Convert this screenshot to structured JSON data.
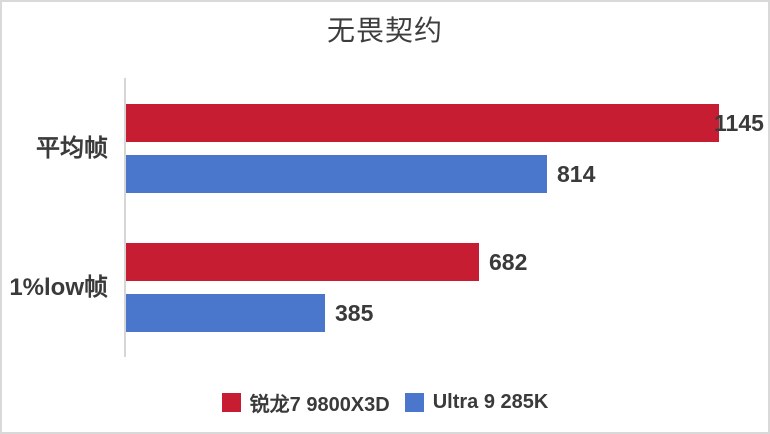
{
  "chart_data": {
    "type": "bar",
    "orientation": "horizontal",
    "title": "无畏契约",
    "categories": [
      "平均帧",
      "1%low帧"
    ],
    "series": [
      {
        "name": "锐龙7 9800X3D",
        "color": "#C61D32",
        "values": [
          1145,
          682
        ]
      },
      {
        "name": "Ultra 9 285K",
        "color": "#4A76CB",
        "values": [
          814,
          385
        ]
      }
    ],
    "xlim": [
      0,
      1200
    ],
    "value_labels": true,
    "legend_position": "bottom",
    "gridlines": false,
    "axis_line_color": "#D6D6D6"
  }
}
